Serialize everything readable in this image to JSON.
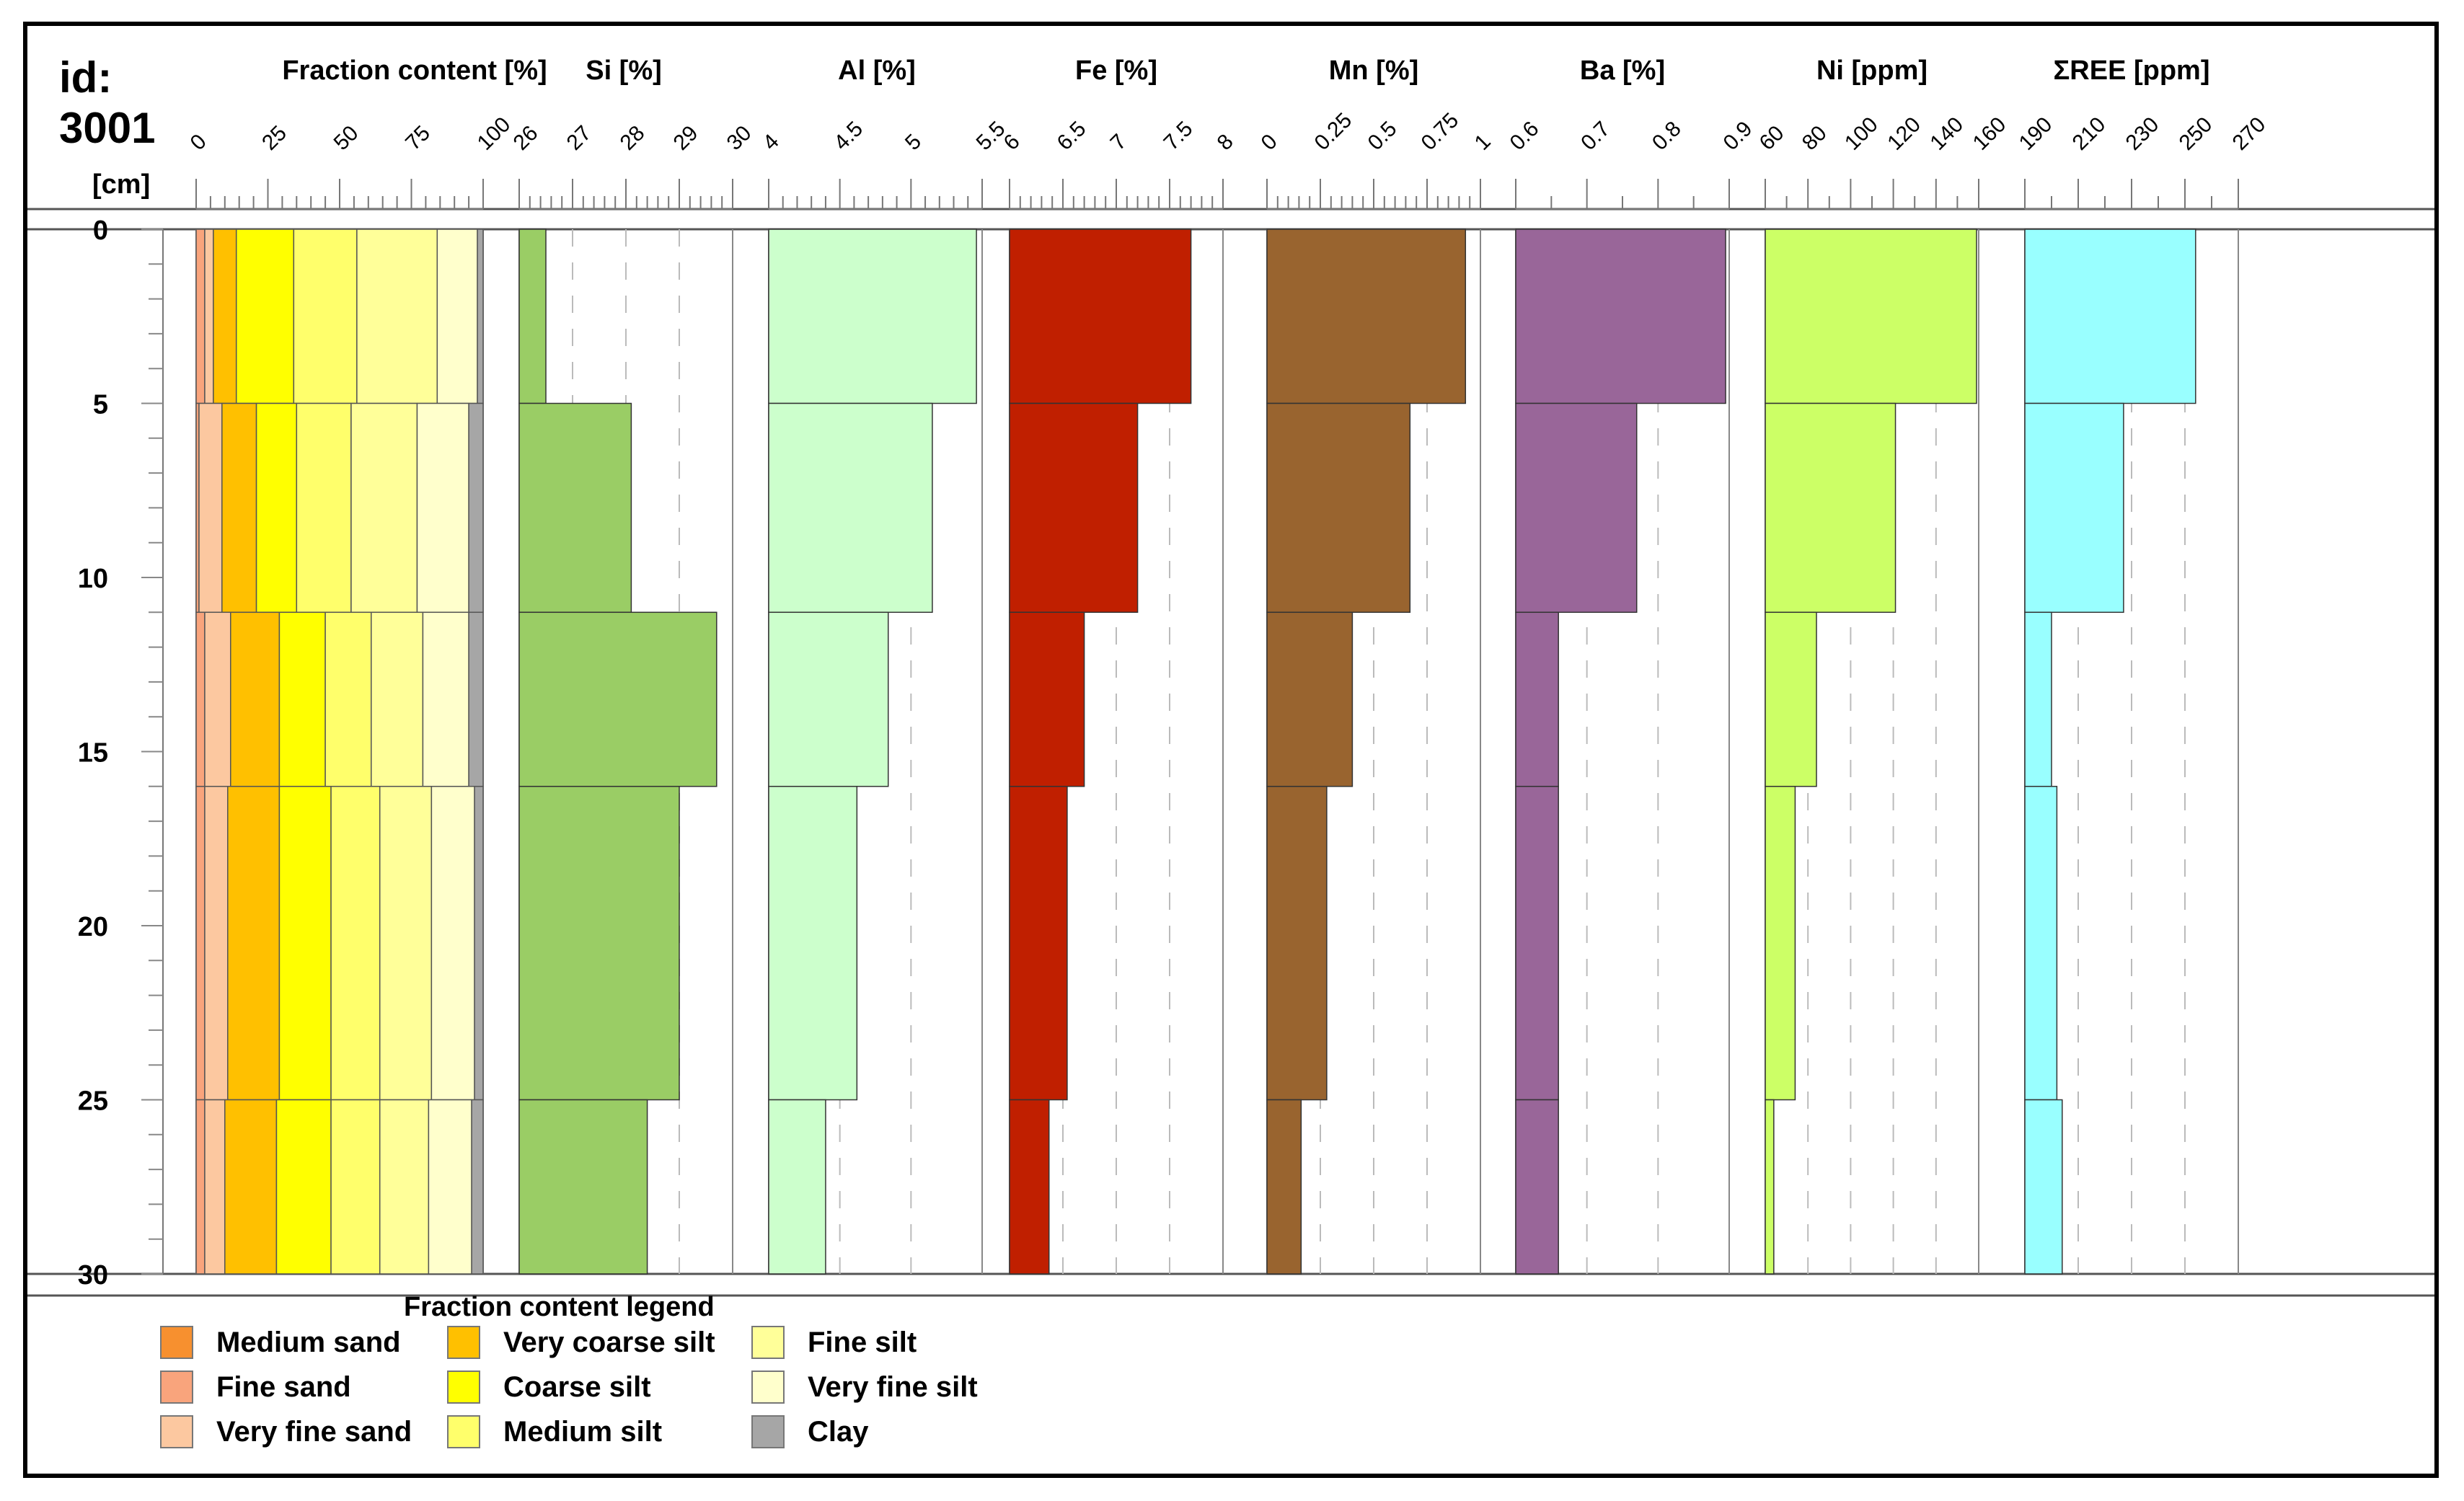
{
  "chart_data": {
    "type": "stepped-depth-profile",
    "core_id_label": "id:",
    "core_id": "3001",
    "depth_unit_label": "[cm]",
    "depth_range": [
      0,
      30
    ],
    "depth_ticks": [
      "0",
      "5",
      "10",
      "15",
      "20",
      "25",
      "30"
    ],
    "intervals": [
      [
        0,
        5
      ],
      [
        5,
        11
      ],
      [
        11,
        16
      ],
      [
        16,
        25
      ],
      [
        25,
        30
      ]
    ],
    "fraction": {
      "title": "Fraction content [%]",
      "range": [
        0,
        100
      ],
      "ticks": [
        "0",
        "25",
        "50",
        "75",
        "100"
      ],
      "classes": [
        "Medium sand",
        "Fine sand",
        "Very fine sand",
        "Very coarse silt",
        "Coarse silt",
        "Medium silt",
        "Fine silt",
        "Very fine silt",
        "Clay"
      ],
      "colors": [
        "#f7902f",
        "#f9a47c",
        "#fcc8a0",
        "#ffc000",
        "#ffff00",
        "#ffff6b",
        "#ffff99",
        "#ffffcc",
        "#a6a6a6"
      ],
      "values": [
        [
          0,
          3,
          3,
          8,
          20,
          22,
          28,
          14,
          2
        ],
        [
          0,
          1,
          8,
          12,
          14,
          19,
          23,
          18,
          5
        ],
        [
          0,
          3,
          9,
          17,
          16,
          16,
          18,
          16,
          5
        ],
        [
          0,
          3,
          8,
          18,
          18,
          17,
          18,
          15,
          3
        ],
        [
          0,
          3,
          7,
          18,
          19,
          17,
          17,
          15,
          4
        ]
      ]
    },
    "series": [
      {
        "name": "Si",
        "title": "Si [%]",
        "range": [
          26,
          30
        ],
        "ticks": [
          "26",
          "27",
          "28",
          "29",
          "30"
        ],
        "values": [
          26.5,
          28.1,
          29.7,
          29.0,
          28.4
        ],
        "color": "#9acd65"
      },
      {
        "name": "Al",
        "title": "Al [%]",
        "range": [
          4,
          5.5
        ],
        "ticks": [
          "4",
          "4.5",
          "5",
          "5.5"
        ],
        "values": [
          5.46,
          5.15,
          4.84,
          4.62,
          4.4
        ],
        "color": "#ccffcc"
      },
      {
        "name": "Fe",
        "title": "Fe [%]",
        "range": [
          6,
          8
        ],
        "ticks": [
          "6",
          "6.5",
          "7",
          "7.5",
          "8"
        ],
        "values": [
          7.7,
          7.2,
          6.7,
          6.54,
          6.37
        ],
        "color": "#c01f00"
      },
      {
        "name": "Mn",
        "title": "Mn [%]",
        "range": [
          0,
          1
        ],
        "ticks": [
          "0",
          "0.25",
          "0.5",
          "0.75",
          "1"
        ],
        "values": [
          0.93,
          0.67,
          0.4,
          0.28,
          0.16
        ],
        "color": "#99642f"
      },
      {
        "name": "Ba",
        "title": "Ba [%]",
        "range": [
          0.6,
          0.9
        ],
        "ticks": [
          "0.6",
          "0.7",
          "0.8",
          "0.9"
        ],
        "values": [
          0.895,
          0.77,
          0.66,
          0.66,
          0.66
        ],
        "color": "#996699"
      },
      {
        "name": "Ni",
        "title": "Ni [ppm]",
        "range": [
          60,
          160
        ],
        "ticks": [
          "60",
          "80",
          "100",
          "120",
          "140",
          "160"
        ],
        "values": [
          159,
          121,
          84,
          74,
          64
        ],
        "color": "#ccff66"
      },
      {
        "name": "REE",
        "title": "ΣREE [ppm]",
        "range": [
          190,
          270
        ],
        "ticks": [
          "190",
          "210",
          "230",
          "250",
          "270"
        ],
        "values": [
          254,
          227,
          200,
          202,
          204
        ],
        "color": "#99ffff"
      }
    ]
  },
  "legend": {
    "title": "Fraction content legend",
    "items": [
      {
        "label": "Medium sand",
        "color": "#f7902f"
      },
      {
        "label": "Fine sand",
        "color": "#f9a47c"
      },
      {
        "label": "Very fine sand",
        "color": "#fcc8a0"
      },
      {
        "label": "Very coarse silt",
        "color": "#ffc000"
      },
      {
        "label": "Coarse silt",
        "color": "#ffff00"
      },
      {
        "label": "Medium silt",
        "color": "#ffff6b"
      },
      {
        "label": "Fine silt",
        "color": "#ffff99"
      },
      {
        "label": "Very fine silt",
        "color": "#ffffcc"
      },
      {
        "label": "Clay",
        "color": "#a6a6a6"
      }
    ]
  }
}
